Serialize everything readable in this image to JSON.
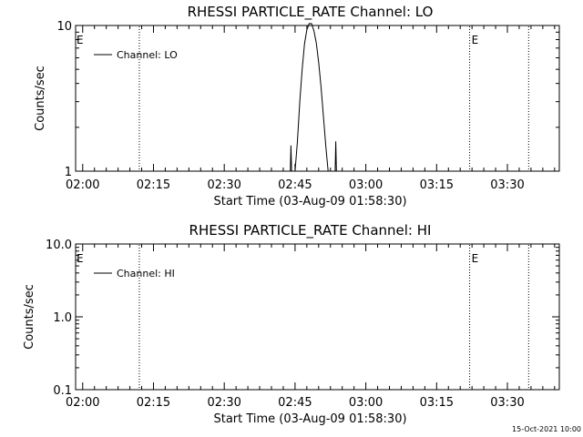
{
  "chart_data": [
    {
      "type": "line",
      "title": "RHESSI PARTICLE_RATE Channel: LO",
      "xlabel": "Start Time (03-Aug-09 01:58:30)",
      "ylabel": "Counts/sec",
      "x_axis": "time",
      "xlim": [
        "01:58:30",
        "03:41:00"
      ],
      "xticks": [
        "02:00",
        "02:15",
        "02:30",
        "02:45",
        "03:00",
        "03:15",
        "03:30"
      ],
      "ylim": [
        1,
        10
      ],
      "yscale": "log",
      "yticks": [
        "1",
        "10"
      ],
      "legend": {
        "entries": [
          "Channel: LO"
        ],
        "position": "top-left"
      },
      "event_lines": [
        {
          "time": "02:12:00",
          "label": ""
        },
        {
          "time": "03:22:00",
          "label": "E"
        },
        {
          "time": "03:34:30",
          "label": ""
        }
      ],
      "edge_label": "E",
      "series": [
        {
          "name": "Channel: LO",
          "segments": [
            [
              {
                "x": "02:44:00",
                "y": 1.0
              },
              {
                "x": "02:44:08",
                "y": 1.5
              },
              {
                "x": "02:44:16",
                "y": 1.0
              }
            ],
            [
              {
                "x": "02:45:00",
                "y": 1.0
              },
              {
                "x": "02:45:30",
                "y": 1.6
              },
              {
                "x": "02:46:00",
                "y": 3.0
              },
              {
                "x": "02:46:30",
                "y": 5.0
              },
              {
                "x": "02:47:00",
                "y": 7.5
              },
              {
                "x": "02:47:30",
                "y": 9.3
              },
              {
                "x": "02:48:00",
                "y": 10.3
              },
              {
                "x": "02:48:30",
                "y": 10.3
              },
              {
                "x": "02:49:00",
                "y": 9.2
              },
              {
                "x": "02:49:30",
                "y": 7.6
              },
              {
                "x": "02:50:00",
                "y": 5.6
              },
              {
                "x": "02:50:30",
                "y": 3.8
              },
              {
                "x": "02:51:00",
                "y": 2.4
              },
              {
                "x": "02:51:30",
                "y": 1.5
              },
              {
                "x": "02:52:00",
                "y": 1.0
              }
            ],
            [
              {
                "x": "02:53:30",
                "y": 1.0
              },
              {
                "x": "02:53:38",
                "y": 1.6
              },
              {
                "x": "02:53:46",
                "y": 1.0
              }
            ]
          ]
        }
      ]
    },
    {
      "type": "line",
      "title": "RHESSI PARTICLE_RATE Channel: HI",
      "xlabel": "Start Time (03-Aug-09 01:58:30)",
      "ylabel": "Counts/sec",
      "x_axis": "time",
      "xlim": [
        "01:58:30",
        "03:41:00"
      ],
      "xticks": [
        "02:00",
        "02:15",
        "02:30",
        "02:45",
        "03:00",
        "03:15",
        "03:30"
      ],
      "ylim": [
        0.1,
        10
      ],
      "yscale": "log",
      "yticks": [
        "0.1",
        "1.0",
        "10.0"
      ],
      "legend": {
        "entries": [
          "Channel: HI"
        ],
        "position": "top-left"
      },
      "event_lines": [
        {
          "time": "02:12:00",
          "label": ""
        },
        {
          "time": "03:22:00",
          "label": "E"
        },
        {
          "time": "03:34:30",
          "label": ""
        }
      ],
      "edge_label": "E",
      "series": [
        {
          "name": "Channel: HI",
          "segments": []
        }
      ]
    }
  ],
  "footer": {
    "timestamp": "15-Oct-2021 10:00"
  },
  "colors": {
    "background": "#ffffff",
    "foreground": "#000000"
  }
}
